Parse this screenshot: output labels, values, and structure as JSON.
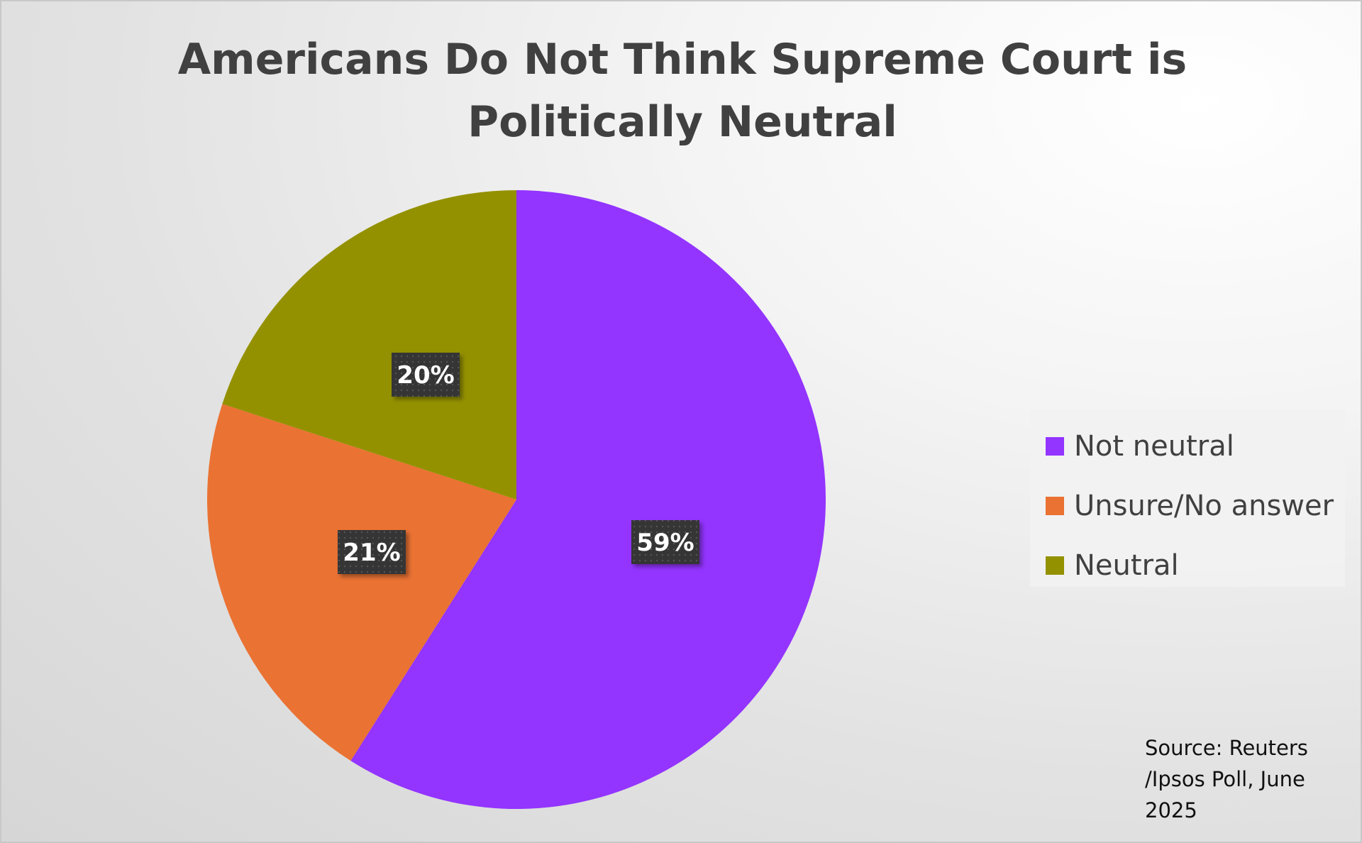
{
  "chart_data": {
    "type": "pie",
    "title": "Americans Do Not Think Supreme Court is Politically Neutral",
    "categories": [
      "Not neutral",
      "Unsure/No answer",
      "Neutral"
    ],
    "values": [
      59,
      21,
      20
    ],
    "labels": [
      "59%",
      "21%",
      "20%"
    ],
    "colors": [
      "#9334FF",
      "#EA7233",
      "#949100"
    ],
    "start_angle_deg": 0,
    "direction": "clockwise",
    "legend": {
      "placement": "right",
      "entries": [
        "Not neutral",
        "Unsure/No answer",
        "Neutral"
      ]
    },
    "annotation": "Source: Reuters /Ipsos Poll, June 2025"
  }
}
